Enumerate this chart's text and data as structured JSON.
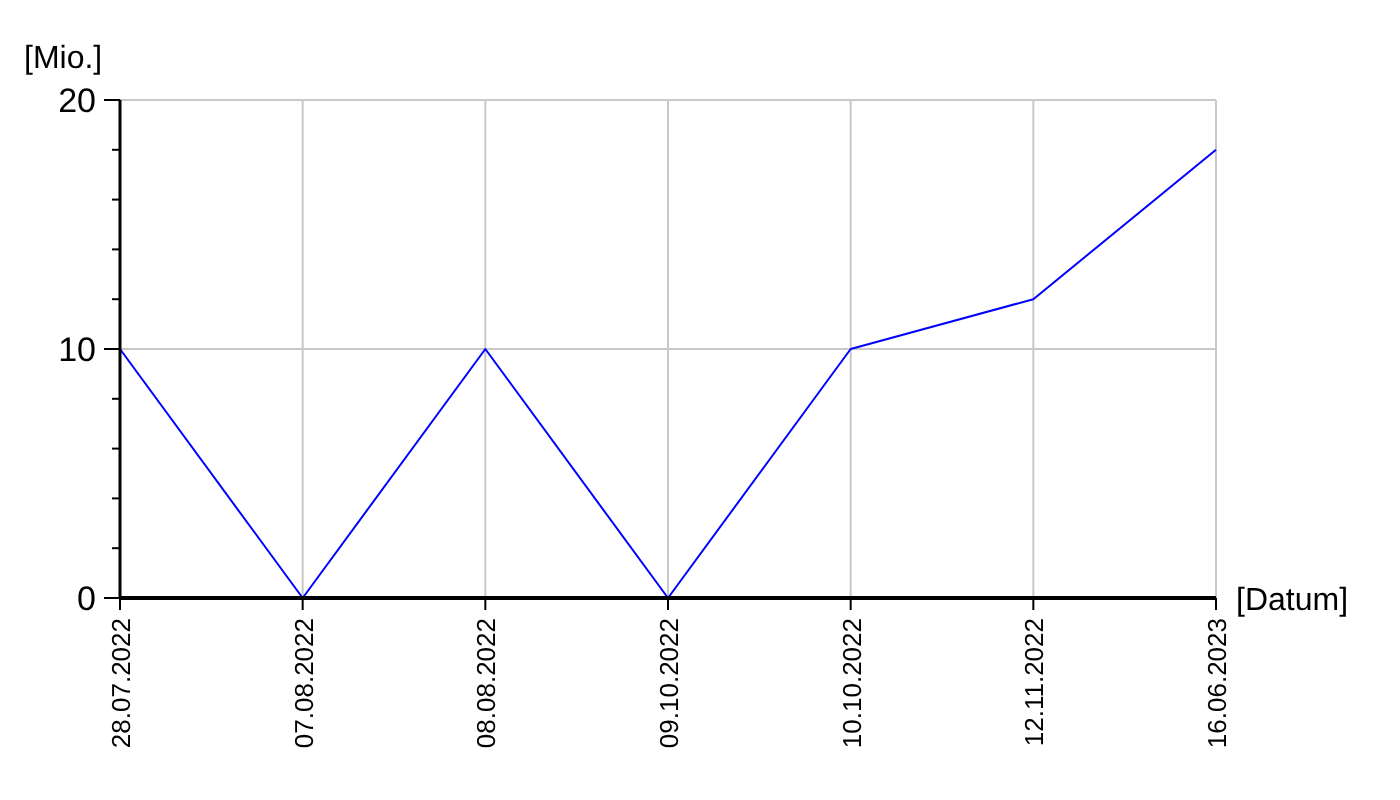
{
  "chart_data": {
    "type": "line",
    "xlabel": "[Datum]",
    "ylabel": "[Mio.]",
    "categories": [
      "28.07.2022",
      "07.08.2022",
      "08.08.2022",
      "09.10.2022",
      "10.10.2022",
      "12.11.2022",
      "16.06.2023"
    ],
    "series": [
      {
        "color": "#0000ff",
        "values": [
          10,
          0,
          10,
          0,
          10,
          12,
          18
        ]
      }
    ],
    "ylim": [
      0,
      20
    ],
    "yticks": [
      0,
      {
        "value": 2,
        "label": null
      },
      {
        "value": 4,
        "label": null
      },
      {
        "value": 6,
        "label": null
      },
      {
        "value": 8,
        "label": null
      },
      10,
      {
        "value": 12,
        "label": null
      },
      {
        "value": 14,
        "label": null
      },
      {
        "value": 16,
        "label": null
      },
      {
        "value": 18,
        "label": null
      },
      20
    ],
    "grid": true,
    "marker": "none",
    "line_style": "solid"
  }
}
